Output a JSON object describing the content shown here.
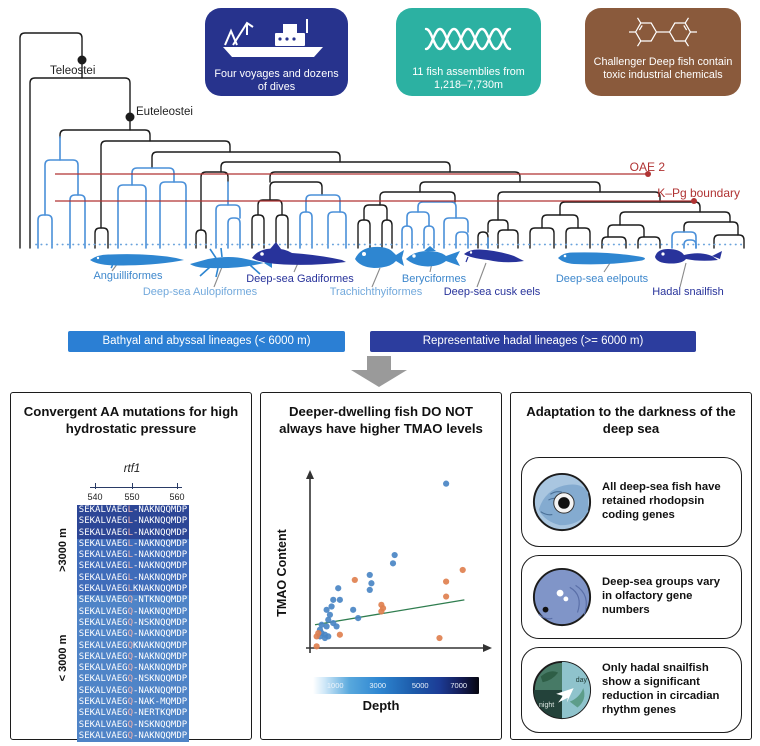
{
  "header": {
    "clade_labels": [
      {
        "text": "Teleostei"
      },
      {
        "text": "Euteleostei"
      }
    ],
    "events": [
      {
        "label": "OAE 2"
      },
      {
        "label": "K–Pg boundary"
      }
    ],
    "info_cards": [
      {
        "icon": "research-vessel-icon",
        "color": "#27338d",
        "text": "Four voyages and dozens of dives"
      },
      {
        "icon": "dna-helix-icon",
        "color": "#2cb1a2",
        "text": "11 fish assemblies from 1,218–7,730m"
      },
      {
        "icon": "pcb-molecule-icon",
        "color": "#8a5a3c",
        "text": "Challenger Deep fish contain toxic industrial chemicals"
      }
    ],
    "fish_groups": [
      {
        "label": "Anguilliformes",
        "type": "bathyal"
      },
      {
        "label": "Deep-sea Aulopiformes",
        "type": "bathyal"
      },
      {
        "label": "Deep-sea Gadiformes",
        "type": "hadal"
      },
      {
        "label": "Trachichthyiformes",
        "type": "bathyal"
      },
      {
        "label": "Beryciformes",
        "type": "bathyal"
      },
      {
        "label": "Deep-sea cusk eels",
        "type": "hadal"
      },
      {
        "label": "Deep-sea eelpouts",
        "type": "bathyal"
      },
      {
        "label": "Hadal snailfish",
        "type": "hadal"
      }
    ],
    "legend": [
      {
        "label": "Bathyal and abyssal lineages (< 6000 m)",
        "color": "#2b7fd4"
      },
      {
        "label": "Representative hadal lineages (>= 6000 m)",
        "color": "#2c3d9e"
      }
    ]
  },
  "panels": {
    "pressure": {
      "title": "Convergent AA mutations for high hydrostatic pressure",
      "gene": "rtf1",
      "axis_ticks": [
        "540",
        "550",
        "560"
      ],
      "group_labels": {
        "deep": ">3000 m",
        "shallow": "< 3000 m"
      },
      "alignment": {
        "prefix": "SEKALVAEG",
        "rows": [
          {
            "variant": "L",
            "suffix": "-NAKNQQMDP",
            "shade": "dark"
          },
          {
            "variant": "L",
            "suffix": "-NAKNQQMDP",
            "shade": "dark"
          },
          {
            "variant": "L",
            "suffix": "-NAKNQQMDP",
            "shade": "dark"
          },
          {
            "variant": "L",
            "suffix": "-NAKNQQMDP",
            "shade": "mid"
          },
          {
            "variant": "L",
            "suffix": "-NAKNQQMDP",
            "shade": "mid"
          },
          {
            "variant": "L",
            "suffix": "-NAKNQQMDP",
            "shade": "mid"
          },
          {
            "variant": "L",
            "suffix": "-NAKNQQMDP",
            "shade": "mid"
          },
          {
            "variant": "L",
            "suffix": "KNAKNQQMDP",
            "shade": "mid"
          },
          {
            "variant": "Q",
            "suffix": "-NTKNQQMDP",
            "shade": "light"
          },
          {
            "variant": "Q",
            "suffix": "-NAKNQQMDP",
            "shade": "light"
          },
          {
            "variant": "Q",
            "suffix": "-NSKNQQMDP",
            "shade": "light"
          },
          {
            "variant": "Q",
            "suffix": "-NAKNQQMDP",
            "shade": "light"
          },
          {
            "variant": "Q",
            "suffix": "KNAKNQQMDP",
            "shade": "light"
          },
          {
            "variant": "Q",
            "suffix": "-NAKNQQMDP",
            "shade": "light"
          },
          {
            "variant": "Q",
            "suffix": "-NAKNQQMDP",
            "shade": "light"
          },
          {
            "variant": "Q",
            "suffix": "-NSKNQQMDP",
            "shade": "light"
          },
          {
            "variant": "Q",
            "suffix": "-NAKNQQMDP",
            "shade": "light"
          },
          {
            "variant": "Q",
            "suffix": "-NAK-MQMDP",
            "shade": "light"
          },
          {
            "variant": "Q",
            "suffix": "-NERTKQMDP",
            "shade": "light"
          },
          {
            "variant": "Q",
            "suffix": "-NSKNQQMDP",
            "shade": "light"
          },
          {
            "variant": "Q",
            "suffix": "-NAKNQQMDP",
            "shade": "light"
          }
        ]
      }
    },
    "tmao": {
      "title": "Deeper-dwelling fish DO NOT always have higher TMAO levels"
    },
    "darkness": {
      "title": "Adaptation to the darkness of the deep sea",
      "items": [
        {
          "icon": "rhodopsin-eye-icon",
          "text": "All deep-sea fish have retained rhodopsin coding genes"
        },
        {
          "icon": "olfactory-fish-icon",
          "text": "Deep-sea groups vary in olfactory gene numbers"
        },
        {
          "icon": "earth-day-night-icon",
          "text": "Only hadal snailfish show a significant reduction in circadian rhythm genes",
          "icon_labels": {
            "day": "day",
            "night": "night"
          }
        }
      ]
    }
  },
  "chart_data": {
    "type": "scatter",
    "title": "Deeper-dwelling fish DO NOT always have higher TMAO levels",
    "xlabel": "Depth",
    "ylabel": "TMAO Content",
    "axes_unlabeled": true,
    "units": "relative 0-100 (axes have no numeric ticks)",
    "series": [
      {
        "name": "blue-points",
        "color": "#4a86c4",
        "points": [
          [
            82,
            99
          ],
          [
            51,
            56
          ],
          [
            50,
            51
          ],
          [
            36,
            44
          ],
          [
            37,
            39
          ],
          [
            36,
            35
          ],
          [
            17,
            36
          ],
          [
            14,
            29
          ],
          [
            18,
            29
          ],
          [
            10,
            23
          ],
          [
            13,
            25
          ],
          [
            26,
            23
          ],
          [
            12,
            20
          ],
          [
            11,
            17
          ],
          [
            14,
            15
          ],
          [
            29,
            18
          ],
          [
            7,
            14
          ],
          [
            10,
            13
          ],
          [
            16,
            13
          ],
          [
            6,
            11
          ],
          [
            7,
            9
          ],
          [
            9,
            8
          ],
          [
            11,
            7
          ],
          [
            6,
            7
          ],
          [
            9,
            6
          ]
        ]
      },
      {
        "name": "orange-points",
        "color": "#e0804f",
        "points": [
          [
            27,
            41
          ],
          [
            92,
            47
          ],
          [
            82,
            40
          ],
          [
            82,
            31
          ],
          [
            43,
            26
          ],
          [
            44,
            24
          ],
          [
            43,
            22
          ],
          [
            5,
            9
          ],
          [
            4,
            7
          ],
          [
            18,
            8
          ],
          [
            78,
            6
          ],
          [
            4,
            1
          ]
        ]
      }
    ],
    "trend_line": {
      "color": "#2f7d4f",
      "from": [
        3,
        14
      ],
      "to": [
        93,
        29
      ]
    },
    "colorbar": {
      "label": "Depth",
      "ticks": [
        "1000",
        "3000",
        "5000",
        "7000"
      ],
      "gradient": [
        "#ffffff",
        "#58a8dd",
        "#2e86d1",
        "#1c3c96",
        "#06060f"
      ]
    }
  }
}
